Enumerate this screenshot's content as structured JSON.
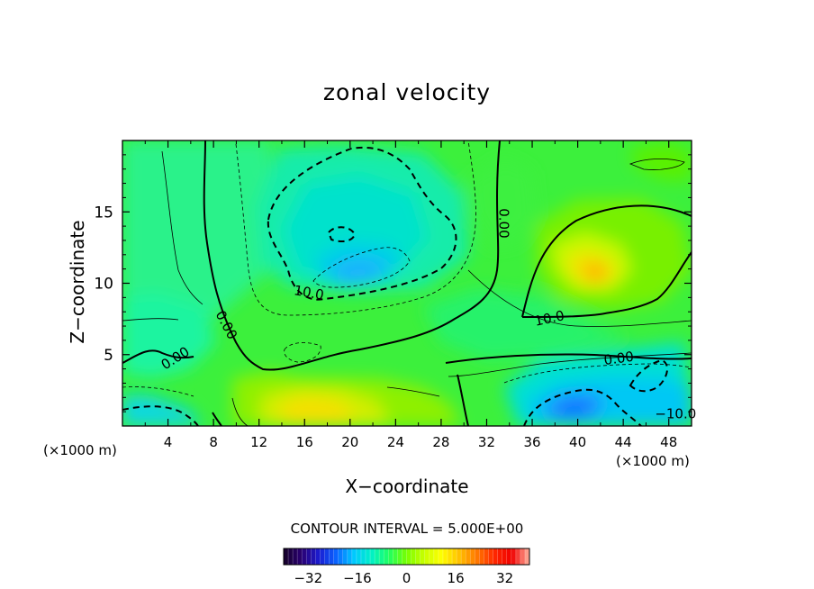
{
  "chart_data": {
    "type": "heatmap",
    "title": "zonal velocity",
    "xlabel": "X−coordinate",
    "ylabel": "Z−coordinate",
    "x_unit": "(×1000 m)",
    "x_unit_repeat": "(×1000 m)",
    "xlim": [
      0,
      50
    ],
    "ylim": [
      0,
      20
    ],
    "x_ticks": [
      4,
      8,
      12,
      16,
      20,
      24,
      28,
      32,
      36,
      40,
      44,
      48
    ],
    "y_ticks": [
      5,
      10,
      15
    ],
    "contour_interval_text": "CONTOUR INTERVAL = 5.000E+00",
    "contour_labels": [
      {
        "text": "0.00",
        "x": 4.6,
        "z": 4.8,
        "angle": -32
      },
      {
        "text": "0.00",
        "x": 9.2,
        "z": 7.1,
        "angle": 62
      },
      {
        "text": "0.00",
        "x": 33.6,
        "z": 14.2,
        "angle": 90
      },
      {
        "text": "0.00",
        "x": 43.6,
        "z": 4.8,
        "angle": -8
      },
      {
        "text": "10.0",
        "x": 16.4,
        "z": 9.4,
        "angle": 10
      },
      {
        "text": "10.0",
        "x": 37.5,
        "z": 7.6,
        "angle": -12
      },
      {
        "text": "−10.0",
        "x": 48.6,
        "z": 0.9,
        "angle": 0
      }
    ],
    "features": [
      {
        "name": "negative core",
        "x": 20.5,
        "z": 10.6,
        "min_value": -17
      },
      {
        "name": "positive core",
        "x": 42.0,
        "z": 10.6,
        "max_value": 16
      },
      {
        "name": "positive bottom",
        "x": 22.0,
        "z": 0.8,
        "max_value": 14
      },
      {
        "name": "negative bottom right",
        "x": 40.0,
        "z": 1.0,
        "min_value": -18
      },
      {
        "name": "negative bottom left",
        "x": 1.5,
        "z": 0.8,
        "min_value": -12
      }
    ],
    "colorbar": {
      "min": -40,
      "max": 40,
      "tick_values": [
        -32,
        -16,
        0,
        16,
        32
      ],
      "tick_labels": [
        "−32",
        "−16",
        "0",
        "16",
        "32"
      ],
      "colors": [
        "#140028",
        "#2a0070",
        "#1b1bd0",
        "#0a64ff",
        "#00c8ff",
        "#00f0c8",
        "#20ff60",
        "#78ff00",
        "#c8ff00",
        "#ffff00",
        "#ffc000",
        "#ff7800",
        "#ff2800",
        "#f00000",
        "#ffb4a0"
      ]
    },
    "grid": false,
    "legend": "colorbar-bottom"
  }
}
